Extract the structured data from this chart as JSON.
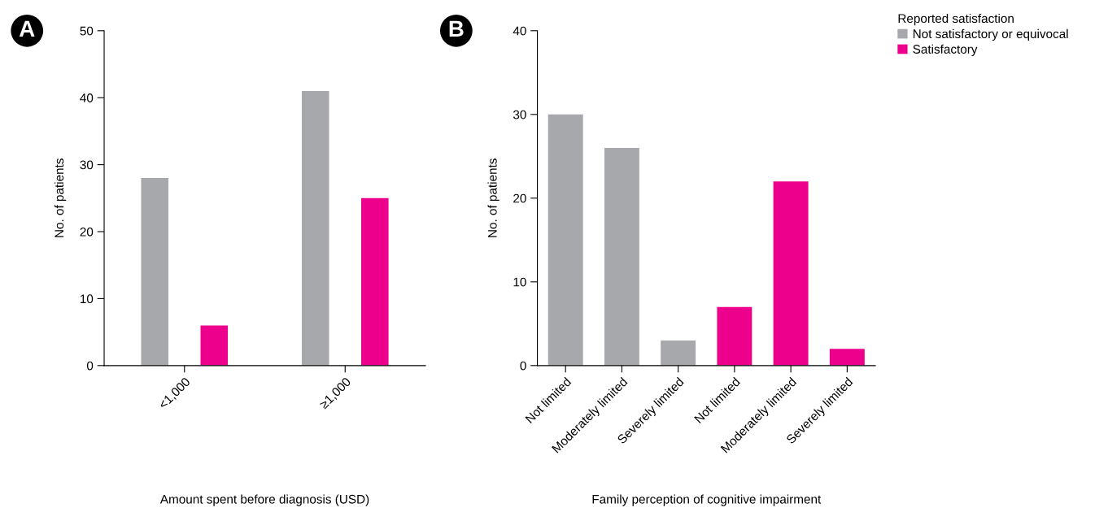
{
  "chart_data": [
    {
      "type": "bar",
      "title": "A",
      "xlabel": "Amount spent before diagnosis (USD)",
      "ylabel": "No. of patients",
      "categories": [
        "<1,000",
        "≥1,000"
      ],
      "series": [
        {
          "name": "Not satisfactory or equivocal",
          "color": "#a7a8ac",
          "values": [
            28,
            41
          ]
        },
        {
          "name": "Satisfactory",
          "color": "#ec008c",
          "values": [
            6,
            25
          ]
        }
      ],
      "ylim": [
        0,
        50
      ],
      "yticks": [
        0,
        10,
        20,
        30,
        40,
        50
      ],
      "grid": false,
      "legend": "top right",
      "legend_title": "Reported satisfaction"
    },
    {
      "type": "bar",
      "title": "B",
      "xlabel": "Family perception of cognitive impairment",
      "ylabel": "No. of patients",
      "categories": [
        "Not limited",
        "Moderately limited",
        "Severely limited",
        "Not limited",
        "Moderately limited",
        "Severely limited"
      ],
      "series": [
        {
          "color": "#a7a8ac",
          "values": [
            30,
            26,
            3,
            null,
            null,
            null
          ]
        },
        {
          "color": "#ec008c",
          "values": [
            null,
            null,
            null,
            7,
            22,
            2
          ]
        }
      ],
      "ylim": [
        0,
        40
      ],
      "yticks": [
        0,
        10,
        20,
        30,
        40
      ],
      "grid": false
    }
  ]
}
